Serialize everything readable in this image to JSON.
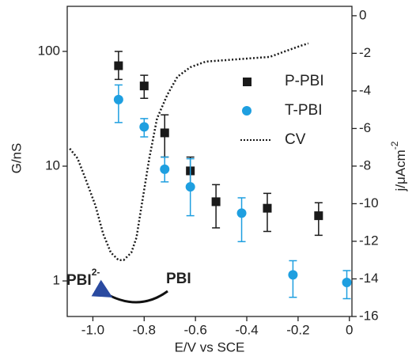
{
  "chart_data": {
    "type": "scatter",
    "xlabel": "E/V vs SCE",
    "ylabel": "G/nS",
    "y2label": "j/μAcm",
    "y2label_sup": "-2",
    "annotations": [
      {
        "text": "PBI",
        "sup": "2-"
      },
      {
        "text": "PBI"
      }
    ],
    "xlim": [
      -1.1,
      0.01
    ],
    "xticks": [
      {
        "value": -1.0,
        "label": "-1.0"
      },
      -0.8,
      -0.6,
      -0.4,
      -0.2,
      0
    ],
    "ylim": [
      0.49,
      247
    ],
    "yscale": "log",
    "yticks": [
      1,
      10,
      100
    ],
    "y2lim": [
      -16,
      0.5
    ],
    "y2ticks": [
      0,
      -2,
      -4,
      -6,
      -8,
      -10,
      -12,
      -14,
      -16
    ],
    "legend": "upper right",
    "series": [
      {
        "name": "P-PBI",
        "type": "scatter",
        "marker": "square",
        "color": "#1a1a1a",
        "x": [
          -0.9,
          -0.8,
          -0.72,
          -0.62,
          -0.52,
          -0.32,
          -0.12
        ],
        "values": [
          75,
          50,
          19.5,
          9.1,
          4.9,
          4.3,
          3.7
        ],
        "lower": [
          57,
          39,
          12,
          6.6,
          2.9,
          2.7,
          2.5
        ],
        "upper": [
          100,
          62,
          28,
          12,
          6.9,
          5.8,
          4.8
        ]
      },
      {
        "name": "T-PBI",
        "type": "scatter",
        "marker": "circle",
        "color": "#1e9fe0",
        "x": [
          -0.9,
          -0.8,
          -0.72,
          -0.62,
          -0.42,
          -0.22,
          -0.01
        ],
        "values": [
          38,
          22,
          9.4,
          6.6,
          3.9,
          1.13,
          0.97
        ],
        "lower": [
          24,
          18,
          7.3,
          3.7,
          2.2,
          0.72,
          0.7
        ],
        "upper": [
          51,
          26,
          12,
          11.6,
          5.3,
          1.5,
          1.23
        ]
      },
      {
        "name": "CV",
        "type": "line",
        "style": "dotted",
        "axis": "y2",
        "color": "#1a1a1a",
        "x": [
          -1.09,
          -1.06,
          -1.03,
          -0.99,
          -0.96,
          -0.93,
          -0.9,
          -0.88,
          -0.85,
          -0.83,
          -0.81,
          -0.78,
          -0.75,
          -0.71,
          -0.67,
          -0.62,
          -0.56,
          -0.44,
          -0.31,
          -0.25,
          -0.19,
          -0.16
        ],
        "values": [
          -7.07,
          -7.58,
          -8.63,
          -10.1,
          -11.6,
          -12.6,
          -13.0,
          -13.0,
          -12.6,
          -11.8,
          -10.1,
          -7.58,
          -5.47,
          -4.21,
          -3.24,
          -2.74,
          -2.44,
          -2.32,
          -2.19,
          -1.89,
          -1.6,
          -1.47
        ]
      }
    ]
  }
}
